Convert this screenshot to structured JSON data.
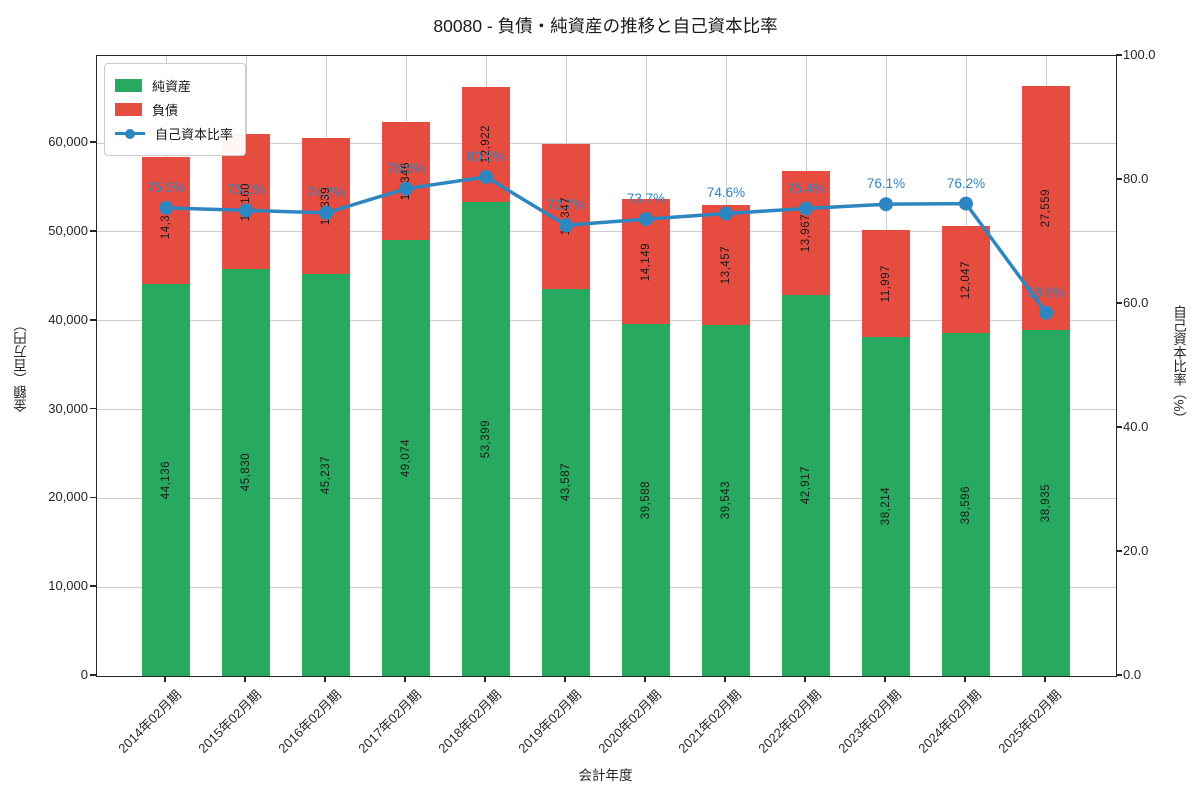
{
  "chart_data": {
    "type": "bar",
    "subtype": "stacked-bars-with-line-overlay",
    "title": "80080 - 負債・純資産の推移と自己資本比率",
    "categories": [
      "2014年02月期",
      "2015年02月期",
      "2016年02月期",
      "2017年02月期",
      "2018年02月期",
      "2019年02月期",
      "2020年02月期",
      "2021年02月期",
      "2022年02月期",
      "2023年02月期",
      "2024年02月期",
      "2025年02月期"
    ],
    "series": [
      {
        "name": "純資産",
        "color": "#27a95f",
        "values": [
          44136,
          45830,
          45237,
          49074,
          53399,
          43587,
          39588,
          39543,
          42917,
          38214,
          38596,
          38935
        ],
        "value_labels": [
          "44,136",
          "45,830",
          "45,237",
          "49,074",
          "53,399",
          "43,587",
          "39,588",
          "39,543",
          "42,917",
          "38,214",
          "38,596",
          "38,935"
        ]
      },
      {
        "name": "負債",
        "color": "#e64c3f",
        "values": [
          14342,
          15160,
          15339,
          13346,
          12922,
          16347,
          14149,
          13457,
          13967,
          11997,
          12047,
          27559
        ],
        "value_labels": [
          "14,342",
          "15,160",
          "15,339",
          "13,346",
          "12,922",
          "16,347",
          "14,149",
          "13,457",
          "13,967",
          "11,997",
          "12,047",
          "27,559"
        ]
      }
    ],
    "line_series": {
      "name": "自己資本比率",
      "color": "#2e86c1",
      "values": [
        75.5,
        75.1,
        74.7,
        78.6,
        80.5,
        72.7,
        73.7,
        74.6,
        75.4,
        76.1,
        76.2,
        58.6
      ],
      "point_labels": [
        "75.5%",
        "75.1%",
        "74.7%",
        "78.6%",
        "80.5%",
        "72.7%",
        "73.7%",
        "74.6%",
        "75.4%",
        "76.1%",
        "76.2%",
        "58.6%"
      ]
    },
    "xlabel": "会計年度",
    "ylabel_left": "金額（百万円）",
    "ylabel_right": "自己資本比率（%）",
    "ylim_left": [
      0,
      69819
    ],
    "ylim_right": [
      0,
      100
    ],
    "yticks_left": {
      "values": [
        0,
        10000,
        20000,
        30000,
        40000,
        50000,
        60000
      ],
      "labels": [
        "0",
        "10,000",
        "20,000",
        "30,000",
        "40,000",
        "50,000",
        "60,000"
      ]
    },
    "yticks_right": {
      "values": [
        0,
        20,
        40,
        60,
        80,
        100
      ],
      "labels": [
        "0.0",
        "20.0",
        "40.0",
        "60.0",
        "80.0",
        "100.0"
      ]
    },
    "grid": true,
    "legend_position": "upper left",
    "colors": {
      "grid": "#cccccc",
      "spine": "#262626",
      "bar_label_text": "#1a1a1a"
    }
  }
}
